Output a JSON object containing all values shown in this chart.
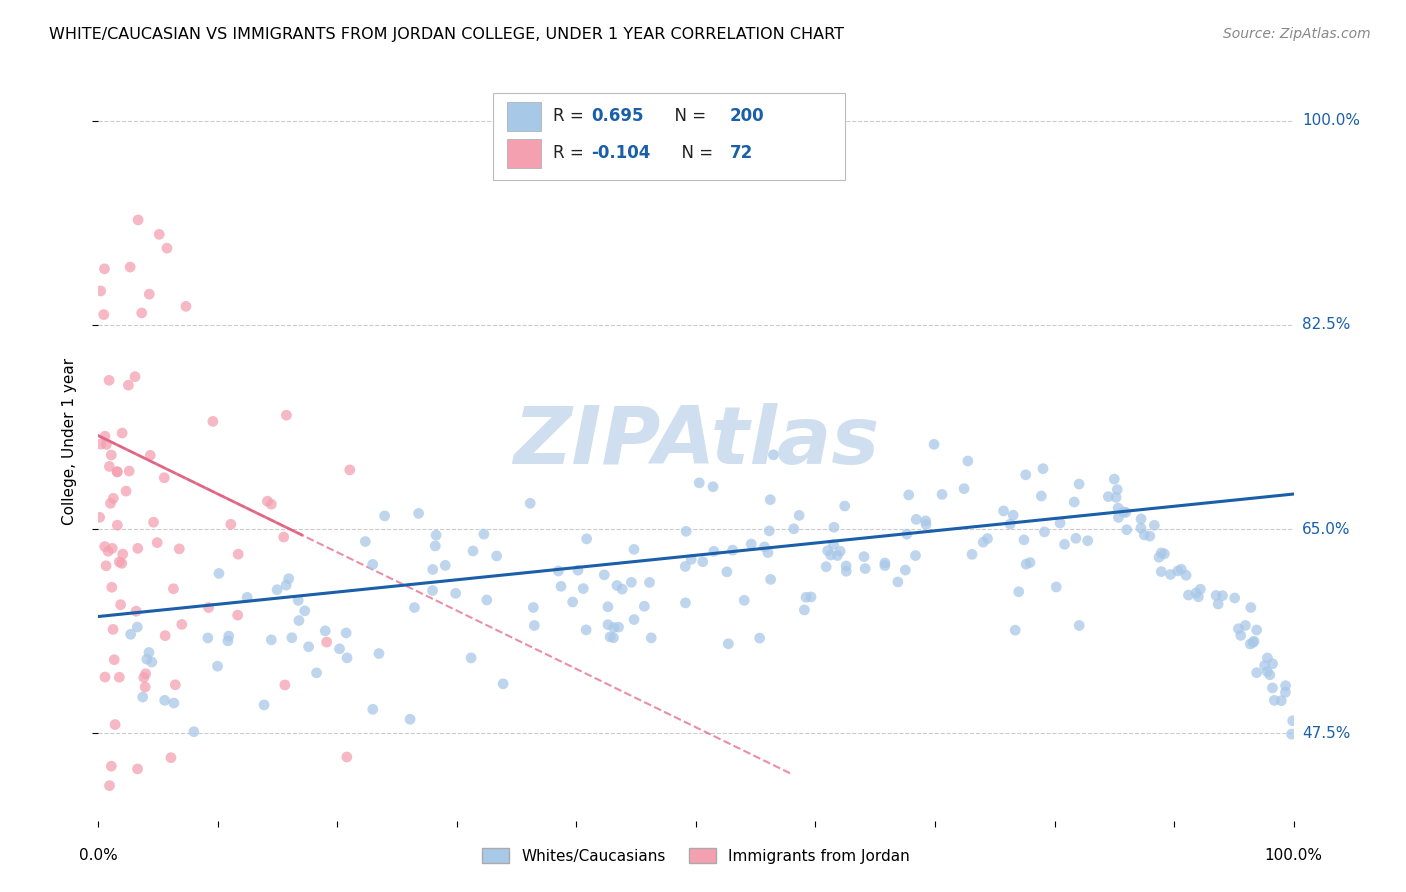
{
  "title": "WHITE/CAUCASIAN VS IMMIGRANTS FROM JORDAN COLLEGE, UNDER 1 YEAR CORRELATION CHART",
  "source": "Source: ZipAtlas.com",
  "ylabel": "College, Under 1 year",
  "ytick_labels": [
    "47.5%",
    "65.0%",
    "82.5%",
    "100.0%"
  ],
  "ytick_values": [
    0.475,
    0.65,
    0.825,
    1.0
  ],
  "xlim": [
    0.0,
    1.0
  ],
  "ylim": [
    0.4,
    1.05
  ],
  "blue_R": 0.695,
  "blue_N": 200,
  "pink_R": -0.104,
  "pink_N": 72,
  "blue_color": "#a8c8e8",
  "pink_color": "#f4a0b0",
  "blue_line_color": "#1a5fa8",
  "pink_line_color": "#e06080",
  "watermark": "ZIPAtlas",
  "watermark_color": "#d0dff0",
  "background_color": "#ffffff",
  "grid_color": "#cccccc"
}
